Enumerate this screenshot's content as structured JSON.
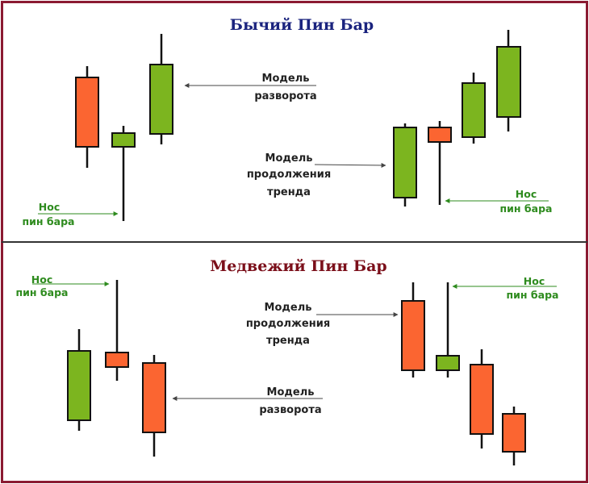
{
  "colors": {
    "frame": "#8b1a32",
    "divider": "#333333",
    "bull": "#7cb51f",
    "bear": "#fb6531",
    "wick": "#111111",
    "bull_title": "#1a237e",
    "bear_title": "#7b0f1a",
    "nose_text": "#2e8b1e",
    "arrow": "#444444",
    "nose_arrow": "#2e8b1e"
  },
  "panels": [
    {
      "title": "Бычий Пин Бар",
      "nose_left": [
        "Нос",
        "пин бара"
      ],
      "nose_right": [
        "Нос",
        "пин бара"
      ],
      "reversal": [
        "Модель",
        "разворота"
      ],
      "continuation": [
        "Модель",
        "продолжения",
        "тренда"
      ],
      "candles": [
        {
          "dir": "bear"
        },
        {
          "dir": "bull"
        },
        {
          "dir": "bull"
        },
        {
          "dir": "bull"
        },
        {
          "dir": "bear"
        },
        {
          "dir": "bull"
        },
        {
          "dir": "bull"
        }
      ]
    },
    {
      "title": "Медвежий Пин Бар",
      "nose_left": [
        "Нос",
        "пин бара"
      ],
      "nose_right": [
        "Нос",
        "пин бара"
      ],
      "reversal": [
        "Модель",
        "разворота"
      ],
      "continuation": [
        "Модель",
        "продолжения",
        "тренда"
      ],
      "candles": [
        {
          "dir": "bull"
        },
        {
          "dir": "bear"
        },
        {
          "dir": "bear"
        },
        {
          "dir": "bear"
        },
        {
          "dir": "bull"
        },
        {
          "dir": "bear"
        },
        {
          "dir": "bear"
        }
      ]
    }
  ]
}
